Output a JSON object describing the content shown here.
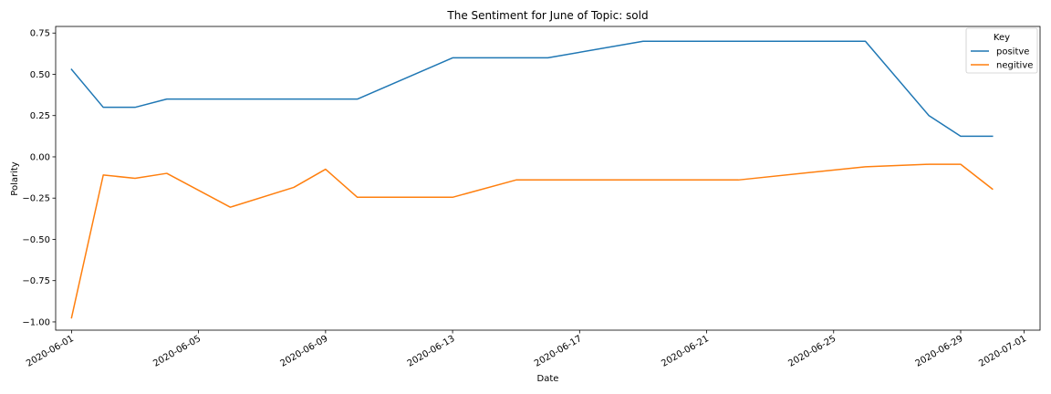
{
  "chart_data": {
    "type": "line",
    "title": "The Sentiment for June of Topic: sold",
    "xlabel": "Date",
    "ylabel": "Polarity",
    "x_axis": {
      "kind": "date",
      "range": [
        "2020-05-31T12:00",
        "2020-07-01T12:00"
      ],
      "ticks": [
        "2020-06-01",
        "2020-06-05",
        "2020-06-09",
        "2020-06-13",
        "2020-06-17",
        "2020-06-21",
        "2020-06-25",
        "2020-06-29",
        "2020-07-01"
      ],
      "tick_label_rotation": 30
    },
    "y_axis": {
      "range": [
        -1.05,
        0.79
      ],
      "ticks": [
        -1.0,
        -0.75,
        -0.5,
        -0.25,
        0.0,
        0.25,
        0.5,
        0.75
      ],
      "tick_labels": [
        "−1.00",
        "−0.75",
        "−0.50",
        "−0.25",
        "0.00",
        "0.25",
        "0.50",
        "0.75"
      ]
    },
    "grid": false,
    "legend": {
      "title": "Key",
      "position": "top-right"
    },
    "series": [
      {
        "name": "positve",
        "color": "#1f77b4",
        "x": [
          "2020-06-01",
          "2020-06-02",
          "2020-06-03",
          "2020-06-04",
          "2020-06-10",
          "2020-06-13",
          "2020-06-16",
          "2020-06-19",
          "2020-06-26",
          "2020-06-28",
          "2020-06-29",
          "2020-06-30"
        ],
        "y": [
          0.53,
          0.3,
          0.3,
          0.35,
          0.35,
          0.6,
          0.6,
          0.7,
          0.7,
          0.25,
          0.125,
          0.125
        ]
      },
      {
        "name": "negitive",
        "color": "#ff7f0e",
        "x": [
          "2020-06-01",
          "2020-06-02",
          "2020-06-03",
          "2020-06-04",
          "2020-06-06",
          "2020-06-08",
          "2020-06-09",
          "2020-06-10",
          "2020-06-13",
          "2020-06-15",
          "2020-06-22",
          "2020-06-26",
          "2020-06-28",
          "2020-06-29",
          "2020-06-30"
        ],
        "y": [
          -0.975,
          -0.11,
          -0.13,
          -0.1,
          -0.305,
          -0.185,
          -0.075,
          -0.245,
          -0.245,
          -0.14,
          -0.14,
          -0.06,
          -0.045,
          -0.045,
          -0.195
        ]
      }
    ]
  }
}
